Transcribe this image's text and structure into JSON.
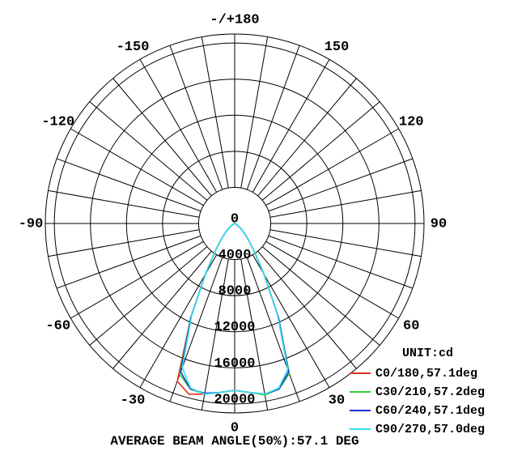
{
  "chart_data": {
    "type": "polar",
    "x": [
      -90,
      -85,
      -80,
      -75,
      -70,
      -65,
      -60,
      -55,
      -50,
      -45,
      -40,
      -35,
      -30,
      -25,
      -20,
      -15,
      -10,
      -5,
      0,
      5,
      10,
      15,
      20,
      25,
      30,
      35,
      40,
      45,
      50,
      55,
      60,
      65,
      70,
      75,
      80,
      85,
      90
    ],
    "series": [
      {
        "name": "C0/180,57.1deg",
        "color": "#e0301e",
        "values": [
          0,
          10,
          20,
          40,
          80,
          150,
          250,
          500,
          900,
          1500,
          2400,
          3800,
          6500,
          11500,
          18600,
          19600,
          19200,
          18800,
          18500,
          18800,
          19200,
          19000,
          17500,
          11500,
          6500,
          3800,
          2400,
          1500,
          900,
          500,
          250,
          150,
          80,
          40,
          20,
          10,
          0
        ]
      },
      {
        "name": "C30/210,57.2deg",
        "color": "#30d030",
        "values": [
          0,
          10,
          20,
          40,
          80,
          150,
          250,
          500,
          900,
          1500,
          2400,
          3800,
          6500,
          11500,
          17800,
          19000,
          19200,
          18800,
          18500,
          18800,
          19300,
          19000,
          17700,
          11500,
          6500,
          3800,
          2400,
          1500,
          900,
          500,
          250,
          150,
          80,
          40,
          20,
          10,
          0
        ]
      },
      {
        "name": "C60/240,57.1deg",
        "color": "#2030d0",
        "values": [
          0,
          10,
          20,
          40,
          80,
          150,
          250,
          500,
          900,
          1500,
          2400,
          3800,
          6500,
          11500,
          17500,
          19000,
          19100,
          18800,
          18500,
          18800,
          19200,
          19000,
          17500,
          11500,
          6500,
          3800,
          2400,
          1500,
          900,
          500,
          250,
          150,
          80,
          40,
          20,
          10,
          0
        ]
      },
      {
        "name": "C90/270,57.0deg",
        "color": "#30e0f0",
        "values": [
          0,
          10,
          20,
          40,
          80,
          150,
          250,
          500,
          900,
          1500,
          2400,
          3800,
          6500,
          11300,
          17000,
          18900,
          19200,
          18800,
          18500,
          18800,
          19200,
          18900,
          17200,
          11300,
          6500,
          3800,
          2400,
          1500,
          900,
          500,
          250,
          150,
          80,
          40,
          20,
          10,
          0
        ]
      }
    ],
    "rlim": [
      0,
      21000
    ],
    "rticks": [
      0,
      4000,
      8000,
      12000,
      16000,
      20000
    ],
    "xticks": [
      -150,
      -120,
      -90,
      -60,
      -30,
      0,
      30,
      60,
      90,
      120,
      150,
      {
        "value": 180,
        "label": "-/+180"
      }
    ],
    "unit_label": "UNIT:cd",
    "footer": "AVERAGE BEAM ANGLE(50%):57.1 DEG"
  }
}
